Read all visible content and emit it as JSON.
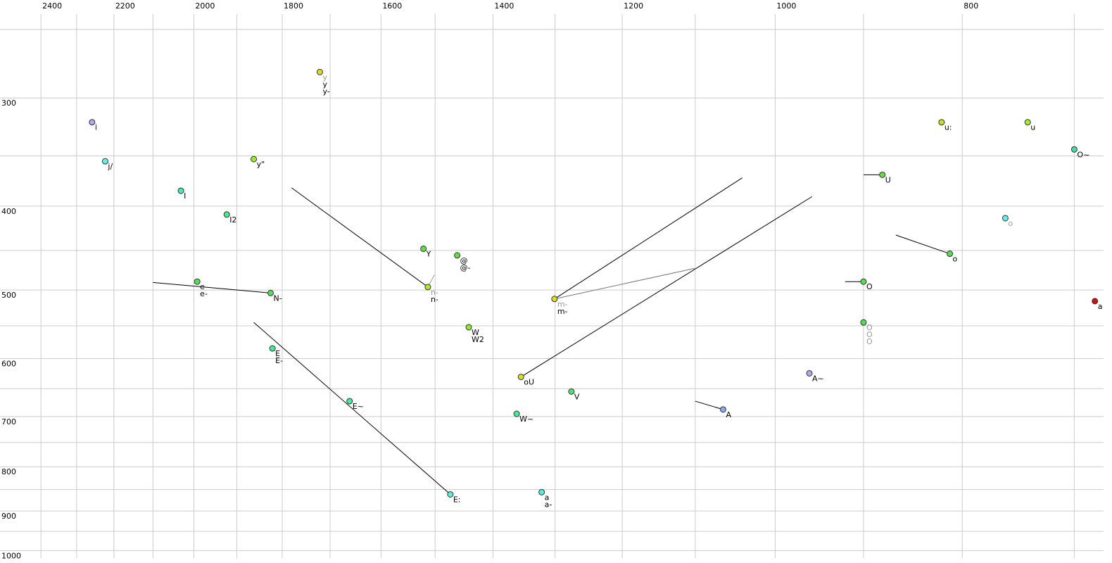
{
  "chart_data": {
    "type": "scatter",
    "x_scale": "log",
    "y_scale": "log",
    "grid": true,
    "xlim": [
      2520,
      676
    ],
    "ylim": [
      240,
      1020
    ],
    "xticks": [
      2400,
      2200,
      2000,
      1800,
      1600,
      1400,
      1200,
      1000,
      800
    ],
    "xgrid": [
      2400,
      2300,
      2200,
      2100,
      2000,
      1900,
      1800,
      1700,
      1600,
      1500,
      1400,
      1300,
      1200,
      1100,
      1000,
      900,
      800,
      700
    ],
    "yticks": [
      300,
      400,
      500,
      600,
      700,
      800,
      900,
      1000
    ],
    "ygrid": [
      250,
      300,
      350,
      400,
      450,
      500,
      550,
      600,
      650,
      700,
      750,
      800,
      850,
      900,
      950,
      1000
    ],
    "points": [
      {
        "labels": [
          "i"
        ],
        "x": 2258,
        "y": 320,
        "color": "#aaaaee"
      },
      {
        "labels": [
          "j/"
        ],
        "x": 2223,
        "y": 355,
        "color": "#66eeee"
      },
      {
        "labels": [
          "y\""
        ],
        "x": 1862,
        "y": 353,
        "color": "#99ee22"
      },
      {
        "labels": [
          "I"
        ],
        "x": 2031,
        "y": 384,
        "color": "#44eeaa"
      },
      {
        "labels": [
          "I2"
        ],
        "x": 1923,
        "y": 409,
        "color": "#44ee88"
      },
      {
        "labels": [
          "y",
          "y",
          "y-"
        ],
        "label_colors": [
          "#999999",
          "#000000",
          "#000000"
        ],
        "x": 1721,
        "y": 280,
        "color": "#dddd22"
      },
      {
        "labels": [
          "Y"
        ],
        "x": 1521,
        "y": 448,
        "color": "#66dd44"
      },
      {
        "labels": [
          "@",
          "@-"
        ],
        "x": 1461,
        "y": 456,
        "color": "#66dd44"
      },
      {
        "labels": [
          "n-",
          "n-"
        ],
        "label_colors": [
          "#999999",
          "#000000"
        ],
        "x": 1513,
        "y": 496,
        "color": "#aaee22"
      },
      {
        "labels": [
          "e",
          "e-"
        ],
        "x": 1992,
        "y": 489,
        "color": "#55dd55"
      },
      {
        "labels": [
          "N-"
        ],
        "x": 1825,
        "y": 504,
        "color": "#55dd55"
      },
      {
        "labels": [
          "W",
          "W2"
        ],
        "x": 1441,
        "y": 552,
        "color": "#88ee22"
      },
      {
        "labels": [
          "E",
          "E-"
        ],
        "x": 1821,
        "y": 584,
        "color": "#44ee99"
      },
      {
        "labels": [
          "E~"
        ],
        "x": 1661,
        "y": 672,
        "color": "#44ee99"
      },
      {
        "labels": [
          "E:"
        ],
        "x": 1473,
        "y": 861,
        "color": "#55eedd"
      },
      {
        "labels": [
          "m-",
          "m-"
        ],
        "label_colors": [
          "#999999",
          "#000000"
        ],
        "x": 1301,
        "y": 512,
        "color": "#dddd22"
      },
      {
        "labels": [
          "oU"
        ],
        "x": 1354,
        "y": 630,
        "color": "#dddd22"
      },
      {
        "labels": [
          "V"
        ],
        "x": 1275,
        "y": 655,
        "color": "#55dd77"
      },
      {
        "labels": [
          "W~"
        ],
        "x": 1361,
        "y": 695,
        "color": "#44ee99"
      },
      {
        "labels": [
          "a",
          "a-"
        ],
        "x": 1321,
        "y": 856,
        "color": "#55eedd"
      },
      {
        "labels": [
          "A"
        ],
        "x": 1064,
        "y": 687,
        "color": "#88aaee"
      },
      {
        "labels": [
          "A~"
        ],
        "x": 960,
        "y": 624,
        "color": "#aaaaee"
      },
      {
        "labels": [
          "U"
        ],
        "x": 880,
        "y": 368,
        "color": "#66dd44"
      },
      {
        "labels": [
          "O"
        ],
        "x": 900,
        "y": 489,
        "color": "#55dd55"
      },
      {
        "labels": [
          "O",
          "O",
          "O"
        ],
        "label_colors": [
          "#999999",
          "#999999",
          "#999999"
        ],
        "x": 900,
        "y": 545,
        "color": "#55dd55"
      },
      {
        "labels": [
          "u:"
        ],
        "x": 820,
        "y": 320,
        "color": "#ccdd22"
      },
      {
        "labels": [
          "u"
        ],
        "x": 740,
        "y": 320,
        "color": "#aaee22"
      },
      {
        "labels": [
          "O~"
        ],
        "x": 700,
        "y": 344,
        "color": "#44ddaa"
      },
      {
        "labels": [
          "o"
        ],
        "label_colors": [
          "#999999"
        ],
        "x": 760,
        "y": 413,
        "color": "#66eeee"
      },
      {
        "labels": [
          "o"
        ],
        "x": 812,
        "y": 454,
        "color": "#55dd55"
      },
      {
        "labels": [
          "a"
        ],
        "x": 683,
        "y": 515,
        "color": "#cc1111"
      }
    ],
    "trails": [
      {
        "x": [
          1301,
          1040
        ],
        "y": [
          512,
          371
        ],
        "color": "#000000"
      },
      {
        "x": [
          1301,
          1101
        ],
        "y": [
          512,
          472
        ],
        "color": "#777777"
      },
      {
        "x": [
          1354,
          957
        ],
        "y": [
          630,
          390
        ],
        "color": "#000000"
      },
      {
        "x": [
          1513,
          1780
        ],
        "y": [
          496,
          381
        ],
        "color": "#000000"
      },
      {
        "x": [
          1513,
          1501
        ],
        "y": [
          496,
          480
        ],
        "color": "#999999"
      },
      {
        "x": [
          1825,
          2100
        ],
        "y": [
          504,
          490
        ],
        "color": "#000000"
      },
      {
        "x": [
          1473,
          1862
        ],
        "y": [
          861,
          545
        ],
        "color": "#000000"
      },
      {
        "x": [
          880,
          900
        ],
        "y": [
          368,
          368
        ],
        "color": "#000000"
      },
      {
        "x": [
          900,
          920
        ],
        "y": [
          489,
          489
        ],
        "color": "#000000"
      },
      {
        "x": [
          812,
          866
        ],
        "y": [
          454,
          432
        ],
        "color": "#000000"
      },
      {
        "x": [
          1064,
          1100
        ],
        "y": [
          687,
          672
        ],
        "color": "#000000"
      }
    ]
  }
}
